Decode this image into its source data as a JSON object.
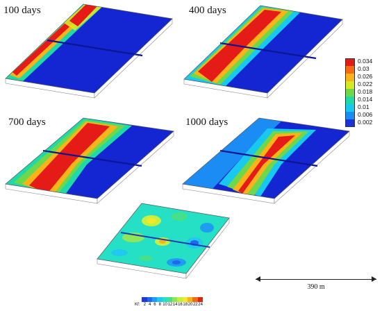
{
  "panels": [
    {
      "title": "100 days"
    },
    {
      "title": "400 days"
    },
    {
      "title": "700 days"
    },
    {
      "title": "1000 days"
    }
  ],
  "legend": {
    "labels": [
      "0.034",
      "0.03",
      "0.026",
      "0.022",
      "0.018",
      "0.014",
      "0.01",
      "0.006",
      "0.002"
    ],
    "colors": [
      "#e51b17",
      "#f56a14",
      "#fbb31a",
      "#d8e824",
      "#6fd84a",
      "#1fd9a8",
      "#17c9ef",
      "#1a8cf3",
      "#1833d8"
    ]
  },
  "kf_legend": {
    "title": "Kf:",
    "labels": [
      "2",
      "4",
      "6",
      "8",
      "10",
      "12",
      "14",
      "16",
      "18",
      "20",
      "22",
      "24"
    ],
    "colors": [
      "#1f3ad2",
      "#2066ee",
      "#1f9df2",
      "#22c8ef",
      "#25e0c4",
      "#45e08a",
      "#8ee65a",
      "#c8ee3f",
      "#f1ea2b",
      "#f7b21e",
      "#f26a16",
      "#e32216"
    ]
  },
  "scale_bar": {
    "label": "390 m"
  },
  "colors": {
    "background": "#1425d2",
    "slab_edge": "#555555"
  }
}
